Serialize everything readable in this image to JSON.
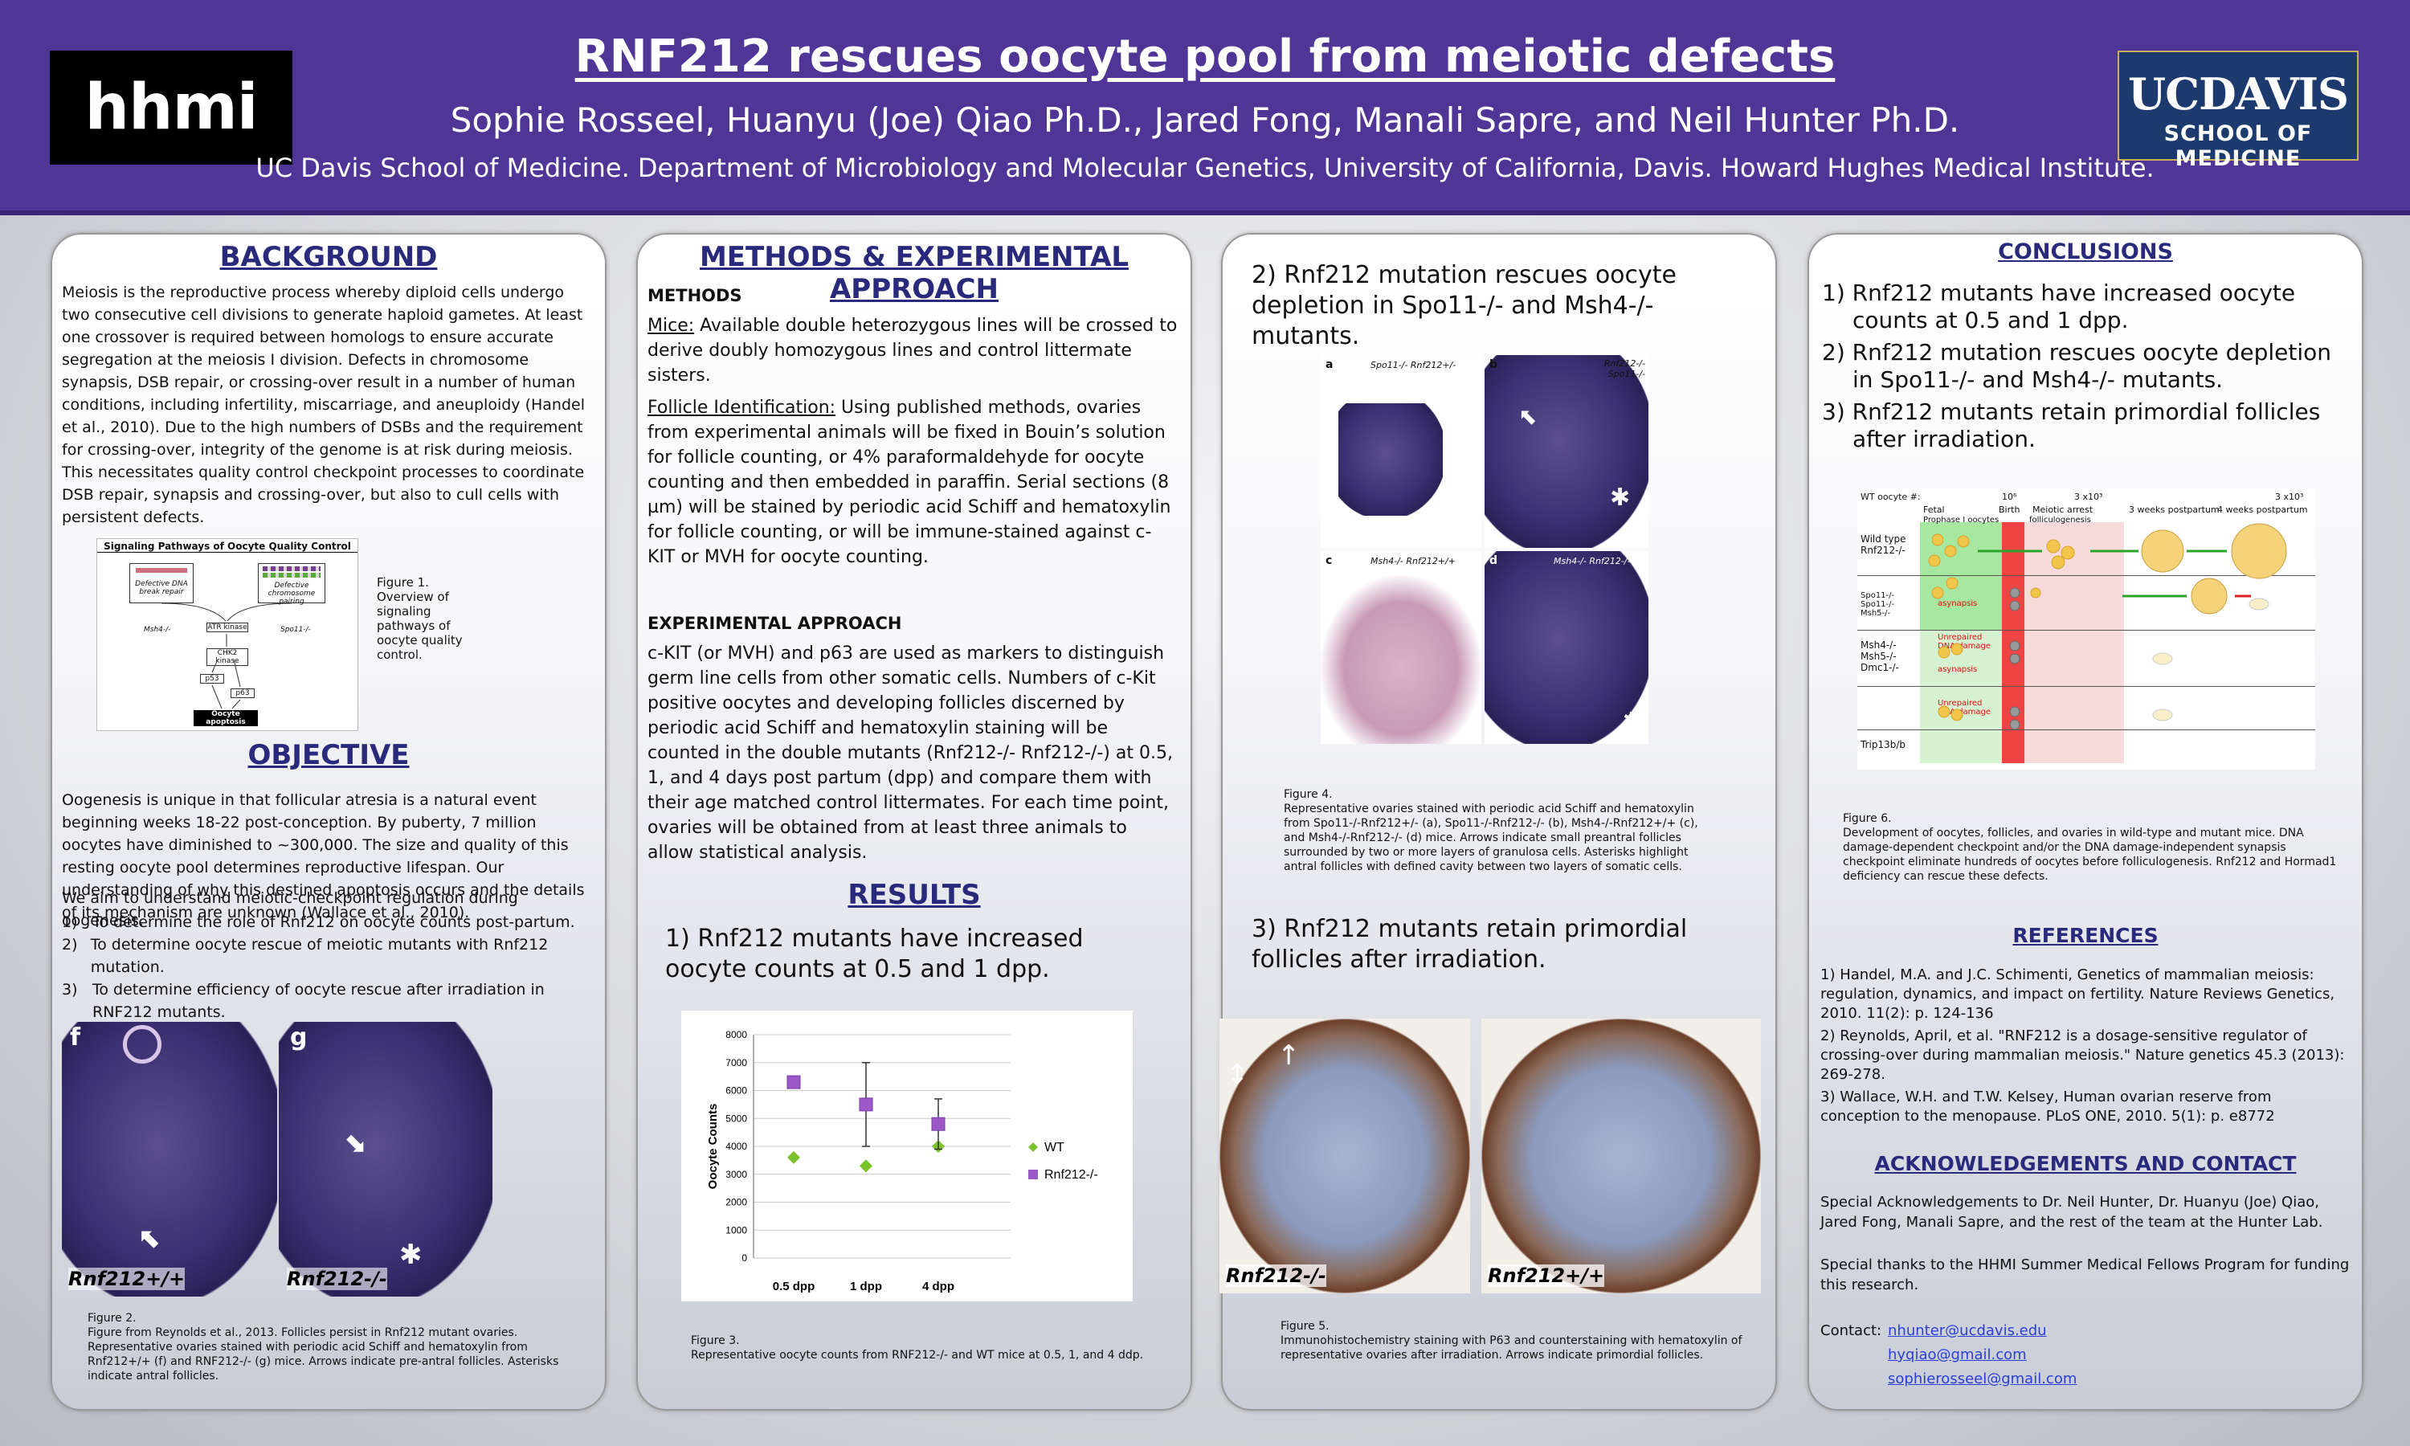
{
  "header": {
    "title": "RNF212 rescues oocyte pool from meiotic defects",
    "authors": "Sophie Rosseel, Huanyu (Joe) Qiao Ph.D.,  Jared Fong, Manali Sapre, and Neil Hunter Ph.D.",
    "affiliation": "UC Davis School of Medicine. Department of Microbiology and Molecular Genetics, University of California, Davis. Howard Hughes Medical Institute.",
    "logo_left": "hhmi",
    "logo_right_line1": "UCDAVIS",
    "logo_right_line2": "SCHOOL OF MEDICINE"
  },
  "background": {
    "heading": "BACKGROUND",
    "text": "Meiosis is the reproductive process whereby diploid cells undergo two consecutive cell divisions to generate haploid gametes. At least one crossover is required between homologs to ensure accurate segregation at the meiosis I division. Defects in chromosome synapsis, DSB repair, or crossing-over result in a number of human conditions, including infertility, miscarriage, and aneuploidy (Handel et al., 2010). Due to the high numbers of DSBs and the requirement for crossing-over, integrity of the genome is at risk during meiosis. This necessitates quality control checkpoint processes to coordinate DSB repair, synapsis and crossing-over, but also to cull cells with persistent defects.",
    "fig1_title": "Signaling Pathways of Oocyte Quality Control",
    "fig1_box_left": "Defective DNA break repair",
    "fig1_box_right": "Defective chromosome pairing",
    "fig1_label_left": "Msh4-/-",
    "fig1_label_right": "Spo11-/-",
    "fig1_atr": "ATR kinase",
    "fig1_chk2": "CHK2 kinase",
    "fig1_p53": "p53",
    "fig1_p63": "p63",
    "fig1_apoptosis": "Oocyte apoptosis",
    "fig1_caption": "Figure 1.\nOverview of signaling pathways of oocyte quality control."
  },
  "objective": {
    "heading": "OBJECTIVE",
    "text": "Oogenesis is unique in that follicular atresia is a natural event beginning weeks 18-22 post-conception. By puberty, 7 million oocytes have diminished to ~300,000. The size and quality of this resting oocyte pool determines reproductive lifespan. Our understanding of why this destined apoptosis occurs and the details of its mechanism are unknown (Wallace et al., 2010).",
    "aim": "We aim to understand meiotic-checkpoint regulation during oogenesis.",
    "items": [
      {
        "num": "1)",
        "text": "To determine the role of Rnf212 on oocyte counts post-partum."
      },
      {
        "num": "2)",
        "text": "To determine oocyte rescue of meiotic mutants with Rnf212 mutation."
      },
      {
        "num": "3)",
        "text": "To determine efficiency of oocyte rescue after irradiation in RNF212 mutants."
      }
    ],
    "fig2_label_f": "f",
    "fig2_label_g": "g",
    "fig2_geno_f": "Rnf212+/+",
    "fig2_geno_g": "Rnf212-/-",
    "fig2_caption": "Figure 2.\nFigure from Reynolds et al., 2013. Follicles persist in Rnf212 mutant ovaries. Representative ovaries stained with periodic acid Schiff and hematoxylin from Rnf212+/+ (f) and RNF212-/- (g) mice. Arrows indicate pre-antral follicles. Asterisks indicate antral follicles."
  },
  "methods": {
    "heading": "METHODS & EXPERIMENTAL APPROACH",
    "sub1": "METHODS",
    "mice_label": "Mice:",
    "mice_text": " Available double heterozygous lines will be crossed to derive doubly homozygous lines and control littermate sisters.",
    "follicle_label": "Follicle Identification:",
    "follicle_text": " Using published methods, ovaries from experimental animals will be fixed in Bouin’s solution for follicle counting, or 4% paraformaldehyde for oocyte counting and then embedded in paraffin. Serial sections (8 µm) will be stained by periodic acid Schiff and hematoxylin for follicle counting, or will be immune-stained against c-KIT or MVH for oocyte counting.",
    "sub2": "EXPERIMENTAL APPROACH",
    "approach_text": "c-KIT (or MVH) and p63 are used as markers to distinguish germ line cells from other somatic cells.  Numbers of c-Kit positive oocytes and developing follicles discerned by periodic acid Schiff and hematoxylin staining will be counted in the double mutants (Rnf212-/- Rnf212-/-) at 0.5, 1, and 4 days post partum (dpp) and compare them with their age matched control littermates. For each time point, ovaries will be obtained from at least three animals to allow statistical analysis."
  },
  "results": {
    "heading": "RESULTS",
    "r1": "1) Rnf212 mutants have increased oocyte counts at 0.5 and 1 dpp.",
    "fig3_caption": "Figure 3.\nRepresentative oocyte counts from RNF212-/- and WT mice at 0.5, 1, and 4 ddp.",
    "r2": "2) Rnf212 mutation rescues oocyte depletion in Spo11-/- and Msh4-/- mutants.",
    "fig4_labels": [
      "a",
      "b",
      "c",
      "d"
    ],
    "fig4_genos": [
      "Spo11-/- Rnf212+/-",
      "Rnf212-/- Spo11-/-",
      "Msh4-/- Rnf212+/+",
      "Msh4-/- Rnf212-/-"
    ],
    "fig4_caption": "Figure 4.\nRepresentative ovaries stained with periodic acid Schiff and hematoxylin from Spo11-/-Rnf212+/- (a), Spo11-/-Rnf212-/- (b), Msh4-/-Rnf212+/+ (c), and Msh4-/-Rnf212-/- (d) mice. Arrows indicate small preantral follicles surrounded by two or more layers of granulosa cells. Asterisks highlight antral follicles with defined cavity between two layers of somatic cells.",
    "r3": "3) Rnf212 mutants retain primordial follicles after irradiation.",
    "fig5_geno_left": "Rnf212-/-",
    "fig5_geno_right": "Rnf212+/+",
    "fig5_caption": "Figure 5.\nImmunohistochemistry staining with P63 and counterstaining with hematoxylin of representative ovaries after irradiation.  Arrows indicate primordial follicles."
  },
  "chart_data": {
    "type": "scatter",
    "categories": [
      "0.5 dpp",
      "1 dpp",
      "4 dpp"
    ],
    "ylabel": "Oocyte Counts",
    "xlabel": "",
    "ylim": [
      0,
      8000
    ],
    "yticks": [
      0,
      1000,
      2000,
      3000,
      4000,
      5000,
      6000,
      7000,
      8000
    ],
    "grid": true,
    "legend_position": "right",
    "series": [
      {
        "name": "WT",
        "color": "#7cc22a",
        "marker": "diamond",
        "values": [
          3600,
          3300,
          4000
        ],
        "err": [
          0,
          0,
          0
        ]
      },
      {
        "name": "Rnf212-/-",
        "color": "#9b59c8",
        "marker": "square",
        "values": [
          6300,
          5500,
          4800
        ],
        "err": [
          0,
          1500,
          900
        ]
      }
    ]
  },
  "conclusions": {
    "heading": "CONCLUSIONS",
    "items": [
      "1) Rnf212 mutants have increased oocyte counts at 0.5 and 1 dpp.",
      "2) Rnf212 mutation rescues oocyte depletion in Spo11-/- and Msh4-/- mutants.",
      "3) Rnf212 mutants retain primordial follicles after irradiation."
    ],
    "fig6_header": "WT oocyte #:",
    "fig6_cols": [
      "Fetal",
      "Birth",
      "Meiotic arrest",
      "3 weeks postpartum",
      "4 weeks postpartum"
    ],
    "fig6_sub": [
      "Prophase I oocytes",
      "folliculogenesis"
    ],
    "fig6_counts": [
      "10⁶",
      "3 x10³",
      "3 x10³"
    ],
    "fig6_rows": [
      "Wild type Rnf212-/-",
      "Spo11-/- Spo11-/-Msh5-/-",
      "Msh4-/- Msh5-/- Dmc1-/-",
      "Trip13b/b"
    ],
    "fig6_notes": [
      "asynapsis",
      "Unrepaired DNA damage",
      "asynapsis",
      "Unrepaired DNA damage"
    ],
    "fig6_caption": "Figure 6.\nDevelopment of oocytes, follicles, and ovaries in wild-type and mutant mice. DNA damage-dependent checkpoint and/or the DNA damage-independent synapsis checkpoint eliminate hundreds of oocytes before folliculogenesis. Rnf212 and Hormad1 deficiency can rescue these defects."
  },
  "references": {
    "heading": "REFERENCES",
    "items": [
      " 1) Handel, M.A. and J.C. Schimenti, Genetics of mammalian meiosis: regulation, dynamics, and impact on fertility. Nature Reviews Genetics, 2010. 11(2): p. 124-136",
      " 2) Reynolds, April, et al. \"RNF212 is a dosage-sensitive regulator of crossing-over during mammalian meiosis.\" Nature genetics 45.3 (2013): 269-278.",
      " 3) Wallace, W.H. and T.W. Kelsey, Human ovarian reserve from conception to the menopause. PLoS ONE, 2010. 5(1): p. e8772"
    ]
  },
  "acknowledgements": {
    "heading": "ACKNOWLEDGEMENTS AND CONTACT",
    "text1": "Special Acknowledgements to Dr. Neil Hunter, Dr. Huanyu (Joe) Qiao, Jared Fong, Manali Sapre, and the rest of the team at the Hunter Lab.",
    "text2": "Special thanks to the HHMI Summer Medical Fellows Program for funding this research.",
    "contact_label": "Contact:",
    "emails": [
      "nhunter@ucdavis.edu",
      "hyqiao@gmail.com",
      "sophierosseel@gmail.com"
    ]
  },
  "colors": {
    "header_bg": "#4f3596",
    "heading": "#2a2a7c",
    "wt": "#7cc22a",
    "mutant": "#9b59c8"
  }
}
